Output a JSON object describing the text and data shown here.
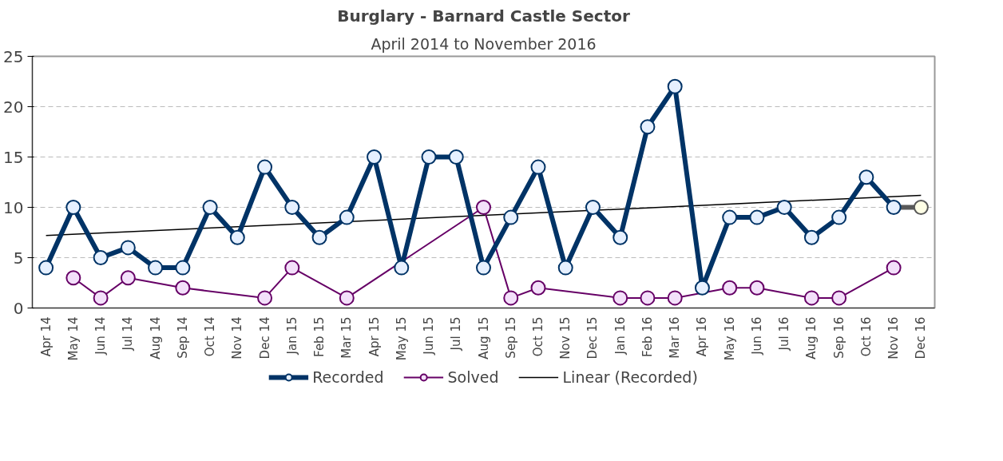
{
  "chart_data": {
    "type": "line",
    "title": "Burglary - Barnard Castle Sector",
    "subtitle": "April 2014 to November 2016",
    "categories": [
      "Apr 14",
      "May 14",
      "Jun 14",
      "Jul 14",
      "Aug 14",
      "Sep 14",
      "Oct 14",
      "Nov 14",
      "Dec 14",
      "Jan 15",
      "Feb 15",
      "Mar 15",
      "Apr 15",
      "May 15",
      "Jun 15",
      "Jul 15",
      "Aug 15",
      "Sep 15",
      "Oct 15",
      "Nov 15",
      "Dec 15",
      "Jan 16",
      "Feb 16",
      "Mar 16",
      "Apr 16",
      "May 16",
      "Jun 16",
      "Jul 16",
      "Aug 16",
      "Sep 16",
      "Oct 16",
      "Nov 16",
      "Dec 16"
    ],
    "series": [
      {
        "name": "Recorded",
        "color": "#003366",
        "marker": "circle",
        "values": [
          4,
          10,
          5,
          6,
          4,
          4,
          10,
          7,
          14,
          10,
          7,
          9,
          15,
          4,
          15,
          15,
          4,
          9,
          14,
          4,
          10,
          7,
          18,
          22,
          2,
          9,
          9,
          10,
          7,
          9,
          13,
          10,
          null
        ]
      },
      {
        "name": "Solved",
        "color": "#660066",
        "marker": "circle",
        "values": [
          null,
          3,
          1,
          3,
          null,
          2,
          null,
          null,
          1,
          4,
          null,
          1,
          null,
          null,
          null,
          null,
          10,
          1,
          2,
          null,
          null,
          1,
          1,
          1,
          null,
          2,
          2,
          null,
          1,
          1,
          null,
          4,
          null
        ]
      },
      {
        "name": "Linear (Recorded)",
        "color": "#000000",
        "marker": "none",
        "values": [
          7.2,
          null,
          null,
          null,
          null,
          null,
          null,
          null,
          null,
          null,
          null,
          null,
          null,
          null,
          null,
          null,
          null,
          null,
          null,
          null,
          null,
          null,
          null,
          null,
          null,
          null,
          null,
          null,
          null,
          null,
          null,
          null,
          11.2
        ]
      },
      {
        "color": "#595959",
        "marker": "circle",
        "values": [
          null,
          null,
          null,
          null,
          null,
          null,
          null,
          null,
          null,
          null,
          null,
          null,
          null,
          null,
          null,
          null,
          null,
          null,
          null,
          null,
          null,
          null,
          null,
          null,
          null,
          null,
          null,
          null,
          null,
          null,
          null,
          10,
          10
        ]
      }
    ],
    "ylim": [
      0,
      25
    ],
    "yticks": [
      0,
      5,
      10,
      15,
      20,
      25
    ],
    "grid": "y",
    "legend": "bottom"
  }
}
